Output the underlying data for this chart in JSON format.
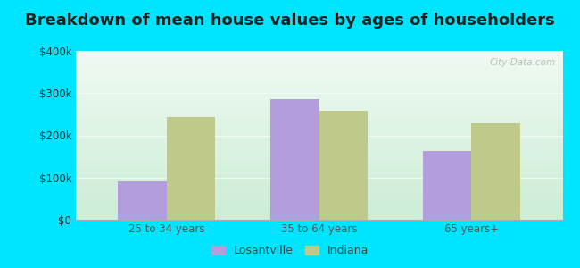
{
  "title": "Breakdown of mean house values by ages of householders",
  "categories": [
    "25 to 34 years",
    "35 to 64 years",
    "65 years+"
  ],
  "losantville_values": [
    90000,
    285000,
    163000
  ],
  "indiana_values": [
    243000,
    258000,
    228000
  ],
  "bar_color_losantville": "#b39ddb",
  "bar_color_indiana": "#bfc98a",
  "ylim": [
    0,
    400000
  ],
  "yticks": [
    0,
    100000,
    200000,
    300000,
    400000
  ],
  "ytick_labels": [
    "$0",
    "$100k",
    "$200k",
    "$300k",
    "$400k"
  ],
  "background_outer": "#00e5ff",
  "background_inner_top": "#e8f5e9",
  "background_inner_bottom": "#c8ecd4",
  "legend_labels": [
    "Losantville",
    "Indiana"
  ],
  "bar_width": 0.32,
  "title_fontsize": 13,
  "watermark": "City-Data.com"
}
